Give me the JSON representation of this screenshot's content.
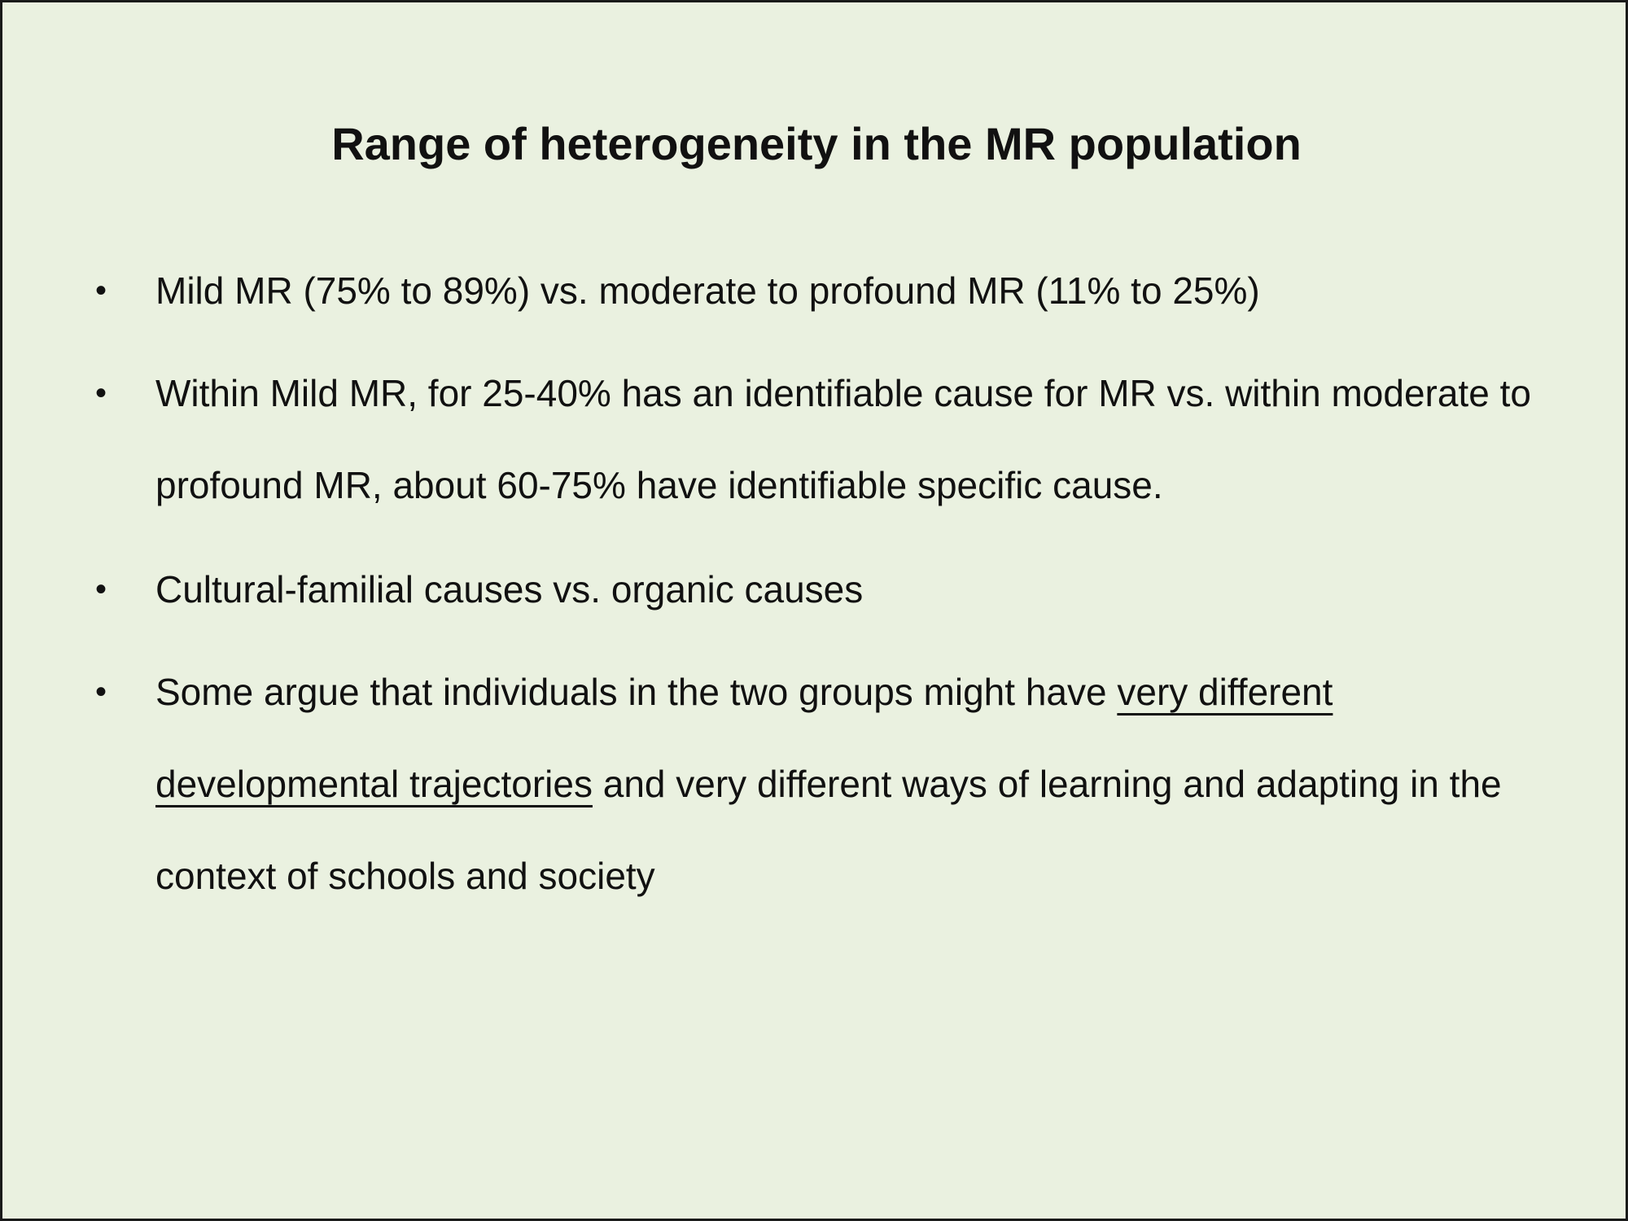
{
  "slide": {
    "title": "Range of heterogeneity in the MR population",
    "bullets": [
      {
        "text": "Mild MR (75% to 89%) vs. moderate to profound MR (11% to 25%)"
      },
      {
        "text": "Within Mild MR, for 25-40% has an identifiable cause for MR vs. within moderate to profound MR, about 60-75% have identifiable specific cause."
      },
      {
        "text": "Cultural-familial causes vs. organic causes"
      },
      {
        "text_before": "Some argue that individuals in the two groups might have ",
        "underlined": "very different developmental trajectories",
        "text_after": " and very different ways of learning and adapting in the context of schools and society"
      }
    ],
    "bullet_glyph": "•",
    "background_color": "#eaf1e0",
    "border_color": "#1a1a1a"
  }
}
